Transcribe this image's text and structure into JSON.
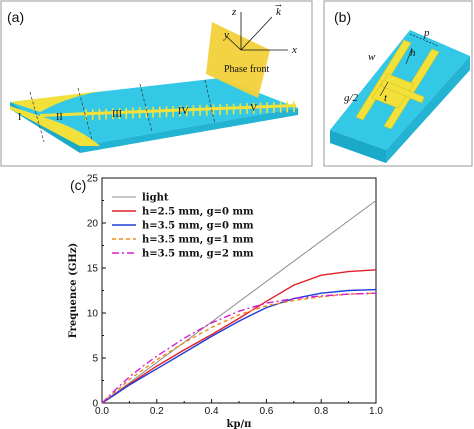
{
  "panels": {
    "a": {
      "label": "(a)",
      "regions": [
        "I",
        "II",
        "III",
        "IV",
        "V"
      ],
      "phase_front": "Phase front",
      "axes": {
        "z": "z",
        "y": "y",
        "x": "x",
        "k": "k"
      }
    },
    "b": {
      "label": "(b)",
      "dims": {
        "p": "p",
        "h": "h",
        "w": "w",
        "t": "t",
        "g2": "g/2"
      }
    },
    "c": {
      "label": "(c)"
    }
  },
  "colors": {
    "cyan": "#33c8e6",
    "cyan_dark": "#1aa9c8",
    "gold": "#f2e13a",
    "gold_dark": "#d8c21f"
  },
  "chart_data": {
    "type": "line",
    "xlabel": "kp/π",
    "ylabel": "Frequence (GHz)",
    "xlim": [
      0,
      1.0
    ],
    "ylim": [
      0,
      25
    ],
    "xticks": [
      "0.0",
      "0.2",
      "0.4",
      "0.6",
      "0.8",
      "1.0"
    ],
    "yticks": [
      "0",
      "5",
      "10",
      "15",
      "20",
      "25"
    ],
    "legend_position": "top-left",
    "series": [
      {
        "name": "light",
        "color": "#8c8c8c",
        "dash": "",
        "x": [
          0,
          1.0
        ],
        "y": [
          0,
          22.5
        ]
      },
      {
        "name": "h=2.5 mm, g=0 mm",
        "color": "#e0202a",
        "dash": "",
        "x": [
          0,
          0.05,
          0.1,
          0.15,
          0.2,
          0.3,
          0.4,
          0.5,
          0.6,
          0.7,
          0.8,
          0.9,
          1.0
        ],
        "y": [
          0,
          1.0,
          2.1,
          3.1,
          4.1,
          5.9,
          7.6,
          9.4,
          11.3,
          13.1,
          14.2,
          14.6,
          14.8
        ]
      },
      {
        "name": "h=3.5 mm, g=0 mm",
        "color": "#1f3ed8",
        "dash": "",
        "x": [
          0,
          0.05,
          0.1,
          0.15,
          0.2,
          0.3,
          0.4,
          0.5,
          0.6,
          0.7,
          0.8,
          0.9,
          1.0
        ],
        "y": [
          0,
          1.0,
          2.0,
          2.9,
          3.8,
          5.6,
          7.4,
          9.1,
          10.6,
          11.6,
          12.2,
          12.5,
          12.6
        ]
      },
      {
        "name": "h=3.5 mm, g=1 mm",
        "color": "#f08a1c",
        "dash": "4,3",
        "x": [
          0,
          0.05,
          0.1,
          0.15,
          0.2,
          0.3,
          0.4,
          0.5,
          0.6,
          0.7,
          0.8,
          0.9,
          1.0
        ],
        "y": [
          0,
          1.3,
          2.6,
          3.7,
          4.8,
          6.7,
          8.4,
          9.8,
          10.8,
          11.4,
          11.8,
          12.1,
          12.2
        ]
      },
      {
        "name": "h=3.5 mm, g=2 mm",
        "color": "#d81fd2",
        "dash": "7,3,2,3",
        "x": [
          0,
          0.05,
          0.1,
          0.15,
          0.2,
          0.3,
          0.4,
          0.5,
          0.6,
          0.7,
          0.8,
          0.9,
          1.0
        ],
        "y": [
          0,
          1.5,
          2.9,
          4.1,
          5.2,
          7.2,
          8.9,
          10.2,
          11.1,
          11.6,
          11.9,
          12.1,
          12.2
        ]
      }
    ]
  }
}
